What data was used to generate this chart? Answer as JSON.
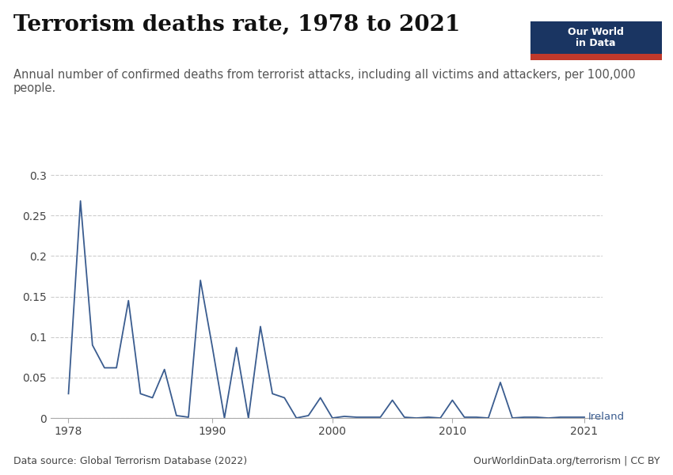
{
  "title": "Terrorism deaths rate, 1978 to 2021",
  "subtitle": "Annual number of confirmed deaths from terrorist attacks, including all victims and attackers, per 100,000\npeople.",
  "data_source": "Data source: Global Terrorism Database (2022)",
  "url": "OurWorldinData.org/terrorism | CC BY",
  "series_label": "Ireland",
  "line_color": "#3a5c8f",
  "years": [
    1978,
    1979,
    1980,
    1981,
    1982,
    1983,
    1984,
    1985,
    1986,
    1987,
    1988,
    1989,
    1990,
    1991,
    1992,
    1993,
    1994,
    1995,
    1996,
    1997,
    1998,
    1999,
    2000,
    2001,
    2002,
    2003,
    2004,
    2005,
    2006,
    2007,
    2008,
    2009,
    2010,
    2011,
    2012,
    2013,
    2014,
    2015,
    2016,
    2017,
    2018,
    2019,
    2020,
    2021
  ],
  "values": [
    0.03,
    0.268,
    0.09,
    0.062,
    0.062,
    0.145,
    0.03,
    0.025,
    0.06,
    0.003,
    0.001,
    0.17,
    0.087,
    0.0,
    0.087,
    0.0,
    0.113,
    0.03,
    0.025,
    0.0,
    0.003,
    0.025,
    0.0,
    0.002,
    0.001,
    0.001,
    0.001,
    0.022,
    0.001,
    0.0,
    0.001,
    0.0,
    0.022,
    0.001,
    0.001,
    0.0,
    0.044,
    0.0,
    0.001,
    0.001,
    0.0,
    0.001,
    0.001,
    0.001
  ],
  "ylim": [
    0,
    0.305
  ],
  "yticks": [
    0,
    0.05,
    0.1,
    0.15,
    0.2,
    0.25,
    0.3
  ],
  "ytick_labels": [
    "0",
    "0.05",
    "0.1",
    "0.15",
    "0.2",
    "0.25",
    "0.3"
  ],
  "xticks": [
    1978,
    1990,
    2000,
    2010,
    2021
  ],
  "background_color": "#ffffff",
  "grid_color": "#cccccc",
  "owid_box_bg": "#1a3562",
  "owid_box_red": "#c0392b",
  "title_fontsize": 20,
  "subtitle_fontsize": 10.5,
  "axis_fontsize": 10,
  "footer_fontsize": 9
}
